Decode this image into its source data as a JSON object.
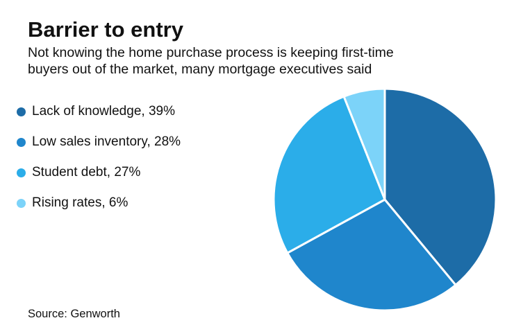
{
  "header": {
    "title": "Barrier to entry",
    "subtitle_lines": [
      "Not knowing the home purchase process is keeping first-time",
      "buyers out of the market, many mortgage executives said"
    ]
  },
  "legend": {
    "items": [
      {
        "label": "Lack of knowledge, 39%",
        "color": "#1D6CA7"
      },
      {
        "label": "Low sales inventory, 28%",
        "color": "#1F86CC"
      },
      {
        "label": "Student debt, 27%",
        "color": "#2BADE9"
      },
      {
        "label": "Rising rates, 6%",
        "color": "#7CD3F9"
      }
    ]
  },
  "chart_data": {
    "type": "pie",
    "title": "Barrier to entry",
    "subtitle": "Not knowing the home purchase process is keeping first-time buyers out of the market, many mortgage executives said",
    "unit": "%",
    "direction": "clockwise",
    "start_angle_deg": 0,
    "legend_position": "left",
    "separator_color": "#FFFFFF",
    "slices": [
      {
        "label": "Lack of knowledge",
        "value": 39,
        "color": "#1D6CA7"
      },
      {
        "label": "Low sales inventory",
        "value": 28,
        "color": "#1F86CC"
      },
      {
        "label": "Student debt",
        "value": 27,
        "color": "#2BADE9"
      },
      {
        "label": "Rising rates",
        "value": 6,
        "color": "#7CD3F9"
      }
    ],
    "source": "Source: Genworth"
  },
  "footer": {
    "source": "Source: Genworth"
  }
}
